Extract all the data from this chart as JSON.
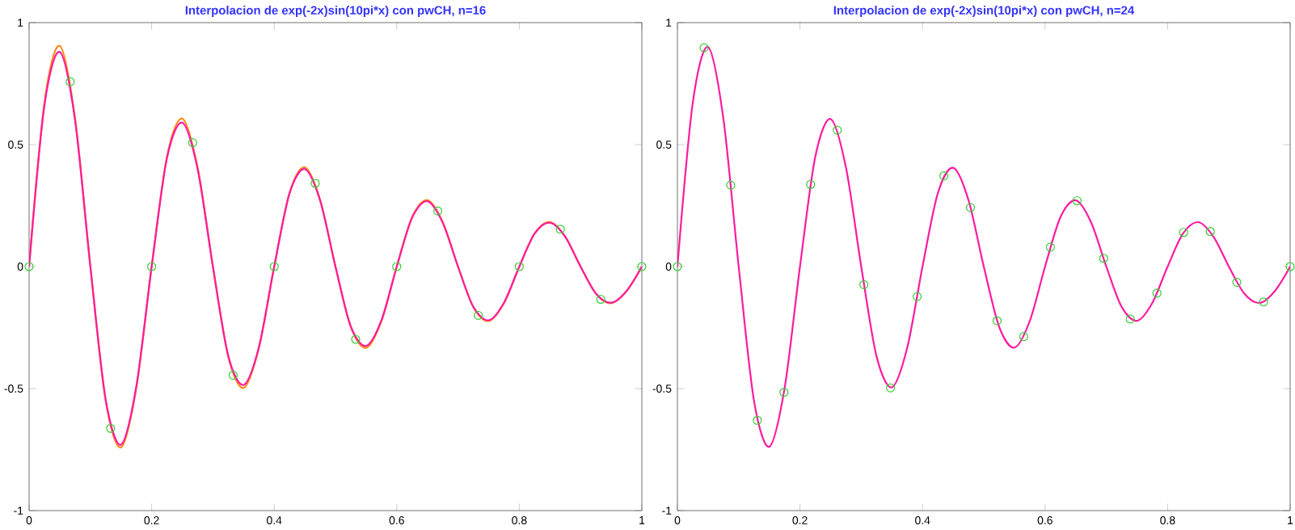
{
  "chart_data": [
    {
      "type": "line",
      "title": "Interpolacion de exp(-2x)sin(10pi*x) con pwCH, n=16",
      "xlim": [
        0,
        1
      ],
      "ylim": [
        -1,
        1
      ],
      "xticks": [
        0,
        0.2,
        0.4,
        0.6,
        0.8,
        1
      ],
      "yticks": [
        -1,
        -0.5,
        0,
        0.5,
        1
      ],
      "grid": false,
      "series": [
        {
          "color": "#ff8c1a",
          "x": [
            0,
            0.025,
            0.05,
            0.075,
            0.1,
            0.125,
            0.15,
            0.175,
            0.2,
            0.225,
            0.25,
            0.275,
            0.3,
            0.325,
            0.35,
            0.375,
            0.4,
            0.425,
            0.45,
            0.475,
            0.5,
            0.525,
            0.55,
            0.575,
            0.6,
            0.625,
            0.65,
            0.675,
            0.7,
            0.725,
            0.75,
            0.775,
            0.8,
            0.825,
            0.85,
            0.875,
            0.9,
            0.925,
            0.95,
            0.975,
            1
          ],
          "values": [
            0,
            0.672,
            0.905,
            0.609,
            0,
            -0.551,
            -0.741,
            -0.498,
            0,
            0.451,
            0.607,
            0.408,
            0,
            -0.369,
            -0.497,
            -0.334,
            0,
            0.302,
            0.407,
            0.274,
            0,
            -0.247,
            -0.333,
            -0.224,
            0,
            0.203,
            0.273,
            0.183,
            0,
            -0.166,
            -0.223,
            -0.15,
            0,
            0.136,
            0.183,
            0.123,
            0,
            -0.111,
            -0.15,
            -0.1,
            0
          ]
        },
        {
          "color": "#ff1aa0",
          "x": [
            0,
            0.025,
            0.05,
            0.075,
            0.1,
            0.125,
            0.15,
            0.175,
            0.2,
            0.225,
            0.25,
            0.275,
            0.3,
            0.325,
            0.35,
            0.375,
            0.4,
            0.425,
            0.45,
            0.475,
            0.5,
            0.525,
            0.55,
            0.575,
            0.6,
            0.625,
            0.65,
            0.675,
            0.7,
            0.725,
            0.75,
            0.775,
            0.8,
            0.825,
            0.85,
            0.875,
            0.9,
            0.925,
            0.95,
            0.975,
            1
          ],
          "values": [
            0,
            0.66,
            0.88,
            0.6,
            0,
            -0.545,
            -0.73,
            -0.49,
            0,
            0.445,
            0.59,
            0.4,
            0,
            -0.365,
            -0.485,
            -0.33,
            0,
            0.3,
            0.4,
            0.27,
            0,
            -0.245,
            -0.325,
            -0.22,
            0,
            0.2,
            0.268,
            0.18,
            0,
            -0.165,
            -0.22,
            -0.148,
            0,
            0.135,
            0.18,
            0.122,
            0,
            -0.11,
            -0.148,
            -0.1,
            0
          ]
        },
        {
          "type": "scatter",
          "marker": "circle",
          "color": "#33cc33",
          "x": [
            0,
            0.067,
            0.133,
            0.2,
            0.267,
            0.333,
            0.4,
            0.467,
            0.533,
            0.6,
            0.667,
            0.733,
            0.8,
            0.867,
            0.933,
            1
          ],
          "values": [
            0,
            0.758,
            -0.663,
            0,
            0.508,
            -0.445,
            0,
            0.341,
            -0.298,
            0,
            0.228,
            -0.2,
            0,
            0.153,
            -0.134,
            0
          ]
        }
      ]
    },
    {
      "type": "line",
      "title": "Interpolacion de exp(-2x)sin(10pi*x) con pwCH, n=24",
      "xlim": [
        0,
        1
      ],
      "ylim": [
        -1,
        1
      ],
      "xticks": [
        0,
        0.2,
        0.4,
        0.6,
        0.8,
        1
      ],
      "yticks": [
        -1,
        -0.5,
        0,
        0.5,
        1
      ],
      "grid": false,
      "series": [
        {
          "color": "#ff1aa0",
          "x": [
            0,
            0.025,
            0.05,
            0.075,
            0.1,
            0.125,
            0.15,
            0.175,
            0.2,
            0.225,
            0.25,
            0.275,
            0.3,
            0.325,
            0.35,
            0.375,
            0.4,
            0.425,
            0.45,
            0.475,
            0.5,
            0.525,
            0.55,
            0.575,
            0.6,
            0.625,
            0.65,
            0.675,
            0.7,
            0.725,
            0.75,
            0.775,
            0.8,
            0.825,
            0.85,
            0.875,
            0.9,
            0.925,
            0.95,
            0.975,
            1
          ],
          "values": [
            0,
            0.67,
            0.9,
            0.607,
            0,
            -0.55,
            -0.738,
            -0.497,
            0,
            0.45,
            0.605,
            0.407,
            0,
            -0.368,
            -0.495,
            -0.333,
            0,
            0.301,
            0.405,
            0.273,
            0,
            -0.246,
            -0.332,
            -0.223,
            0,
            0.202,
            0.272,
            0.182,
            0,
            -0.165,
            -0.222,
            -0.149,
            0,
            0.135,
            0.182,
            0.122,
            0,
            -0.11,
            -0.149,
            -0.1,
            0
          ]
        },
        {
          "type": "scatter",
          "marker": "circle",
          "color": "#33cc33",
          "x": [
            0,
            0.0435,
            0.087,
            0.1304,
            0.1739,
            0.2174,
            0.2609,
            0.3043,
            0.3478,
            0.3913,
            0.4348,
            0.4783,
            0.5217,
            0.5652,
            0.6087,
            0.6522,
            0.6957,
            0.7391,
            0.7826,
            0.8261,
            0.8696,
            0.913,
            0.9565,
            1
          ],
          "values": [
            0,
            0.897,
            0.334,
            -0.63,
            -0.515,
            0.337,
            0.559,
            -0.074,
            -0.497,
            -0.123,
            0.372,
            0.242,
            -0.222,
            -0.287,
            0.08,
            0.27,
            0.034,
            -0.215,
            -0.109,
            0.14,
            0.144,
            -0.064,
            -0.145,
            0
          ]
        }
      ]
    }
  ]
}
